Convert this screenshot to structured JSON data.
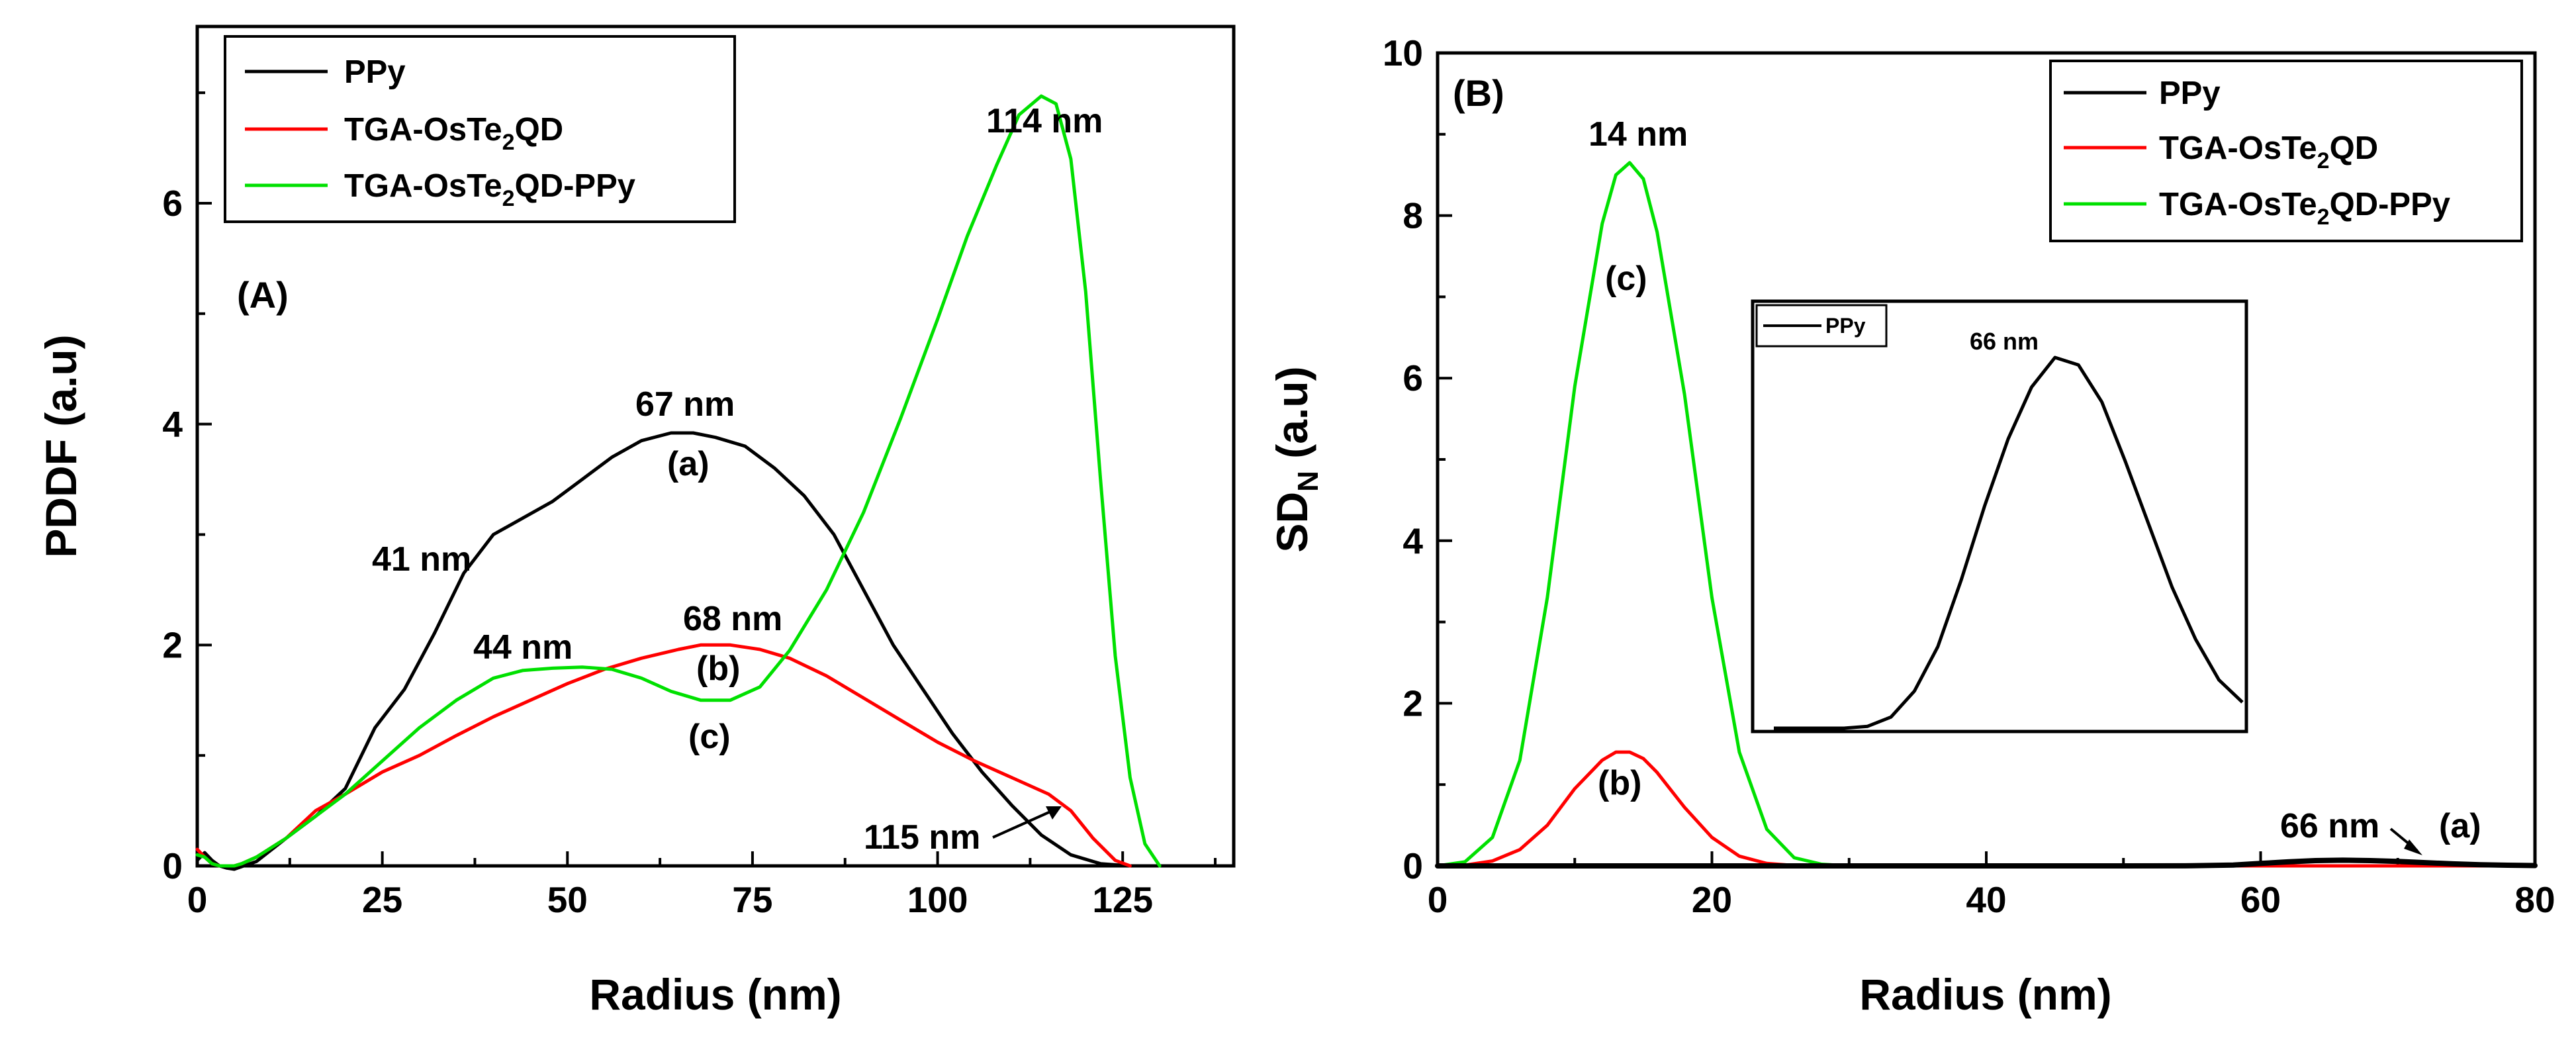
{
  "colors": {
    "ppy": "#000000",
    "tga": "#ff0000",
    "composite": "#00e000",
    "axis": "#000000"
  },
  "legend": {
    "ppy": "PPy",
    "tga": {
      "pre": "TGA-OsTe",
      "sub": "2",
      "post": "QD"
    },
    "composite": {
      "pre": "TGA-OsTe",
      "sub": "2",
      "post": "QD-PPy"
    }
  },
  "chart_data": [
    {
      "type": "line",
      "panel_label": "(A)",
      "xlabel": "Radius (nm)",
      "ylabel": "PDDF (a.u)",
      "xlim": [
        0,
        140
      ],
      "ylim": [
        0,
        7.6
      ],
      "xticks": [
        0,
        25,
        50,
        75,
        100,
        125
      ],
      "yticks": [
        0,
        2,
        4,
        6
      ],
      "series": [
        {
          "name": "PPy",
          "key": "ppy",
          "x": [
            0,
            1,
            2,
            3,
            4,
            5,
            8,
            12,
            16,
            20,
            24,
            28,
            32,
            36,
            40,
            44,
            48,
            52,
            56,
            60,
            64,
            67,
            70,
            74,
            78,
            82,
            86,
            90,
            94,
            98,
            102,
            106,
            110,
            114,
            118,
            122,
            126
          ],
          "y": [
            0.05,
            0.12,
            0.05,
            0.0,
            -0.02,
            -0.03,
            0.04,
            0.25,
            0.45,
            0.7,
            1.25,
            1.6,
            2.1,
            2.65,
            3.0,
            3.15,
            3.3,
            3.5,
            3.7,
            3.85,
            3.92,
            3.92,
            3.88,
            3.8,
            3.6,
            3.35,
            3.0,
            2.5,
            2.0,
            1.6,
            1.2,
            0.85,
            0.55,
            0.28,
            0.1,
            0.02,
            0.0
          ]
        },
        {
          "name": "TGA-OsTe2QD",
          "key": "tga",
          "x": [
            0,
            1,
            2,
            3,
            4,
            5,
            6,
            8,
            12,
            16,
            20,
            25,
            30,
            35,
            40,
            45,
            50,
            55,
            60,
            65,
            68,
            72,
            76,
            80,
            85,
            90,
            95,
            100,
            105,
            110,
            115,
            118,
            121,
            124,
            126
          ],
          "y": [
            0.15,
            0.08,
            0.02,
            0.0,
            0.0,
            0.0,
            0.02,
            0.08,
            0.25,
            0.5,
            0.65,
            0.85,
            1.0,
            1.18,
            1.35,
            1.5,
            1.65,
            1.78,
            1.88,
            1.96,
            2.0,
            2.0,
            1.96,
            1.88,
            1.72,
            1.52,
            1.32,
            1.12,
            0.95,
            0.8,
            0.65,
            0.5,
            0.25,
            0.05,
            0.0
          ]
        },
        {
          "name": "TGA-OsTe2QD-PPy",
          "key": "composite",
          "x": [
            0,
            1,
            2,
            3,
            4,
            5,
            6,
            8,
            12,
            16,
            20,
            25,
            30,
            35,
            40,
            44,
            48,
            52,
            56,
            60,
            64,
            68,
            72,
            76,
            80,
            85,
            90,
            95,
            100,
            104,
            108,
            111,
            114,
            116,
            118,
            120,
            122,
            124,
            126,
            128,
            130
          ],
          "y": [
            0.1,
            0.08,
            0.02,
            0.0,
            0.0,
            0.0,
            0.02,
            0.08,
            0.25,
            0.45,
            0.65,
            0.95,
            1.25,
            1.5,
            1.7,
            1.77,
            1.79,
            1.8,
            1.78,
            1.7,
            1.58,
            1.5,
            1.5,
            1.62,
            1.95,
            2.5,
            3.2,
            4.05,
            4.95,
            5.7,
            6.35,
            6.8,
            6.97,
            6.9,
            6.4,
            5.2,
            3.5,
            1.9,
            0.8,
            0.2,
            0.0
          ]
        }
      ],
      "annotations": [
        {
          "text": "114 nm"
        },
        {
          "text": "67 nm"
        },
        {
          "text": "(a)"
        },
        {
          "text": "41 nm"
        },
        {
          "text": "44 nm"
        },
        {
          "text": "68 nm"
        },
        {
          "text": "(b)"
        },
        {
          "text": "(c)"
        },
        {
          "text": "115 nm"
        }
      ]
    },
    {
      "type": "line",
      "panel_label": "(B)",
      "xlabel": "Radius (nm)",
      "ylabel": {
        "pre": "SD",
        "sub": "N",
        "post": " (a.u)"
      },
      "xlim": [
        0,
        80
      ],
      "ylim": [
        0,
        10
      ],
      "xticks": [
        0,
        20,
        40,
        60,
        80
      ],
      "yticks": [
        0,
        2,
        4,
        6,
        8,
        10
      ],
      "series": [
        {
          "name": "PPy",
          "key": "ppy",
          "x": [
            0,
            10,
            20,
            30,
            40,
            50,
            55,
            58,
            60,
            62,
            64,
            66,
            68,
            70,
            72,
            74,
            76,
            78,
            80
          ],
          "y": [
            0.0,
            0.0,
            0.0,
            0.0,
            0.0,
            0.0,
            0.002,
            0.01,
            0.03,
            0.05,
            0.065,
            0.07,
            0.065,
            0.055,
            0.04,
            0.025,
            0.015,
            0.008,
            0.004
          ]
        },
        {
          "name": "TGA-OsTe2QD",
          "key": "tga",
          "x": [
            0,
            2,
            4,
            6,
            8,
            10,
            12,
            13,
            14,
            15,
            16,
            18,
            20,
            22,
            24,
            26,
            28,
            30,
            40,
            50,
            60,
            70,
            80
          ],
          "y": [
            0.0,
            0.01,
            0.06,
            0.2,
            0.5,
            0.95,
            1.3,
            1.4,
            1.4,
            1.32,
            1.15,
            0.72,
            0.35,
            0.12,
            0.03,
            0.005,
            0.0,
            0.0,
            0.0,
            0.0,
            0.0,
            0.0,
            0.0
          ]
        },
        {
          "name": "TGA-OsTe2QD-PPy",
          "key": "composite",
          "x": [
            0,
            2,
            4,
            6,
            8,
            10,
            12,
            13,
            14,
            15,
            16,
            18,
            20,
            22,
            24,
            26,
            28,
            30,
            40,
            50,
            60,
            70,
            80
          ],
          "y": [
            0.0,
            0.05,
            0.35,
            1.3,
            3.3,
            5.9,
            7.9,
            8.5,
            8.65,
            8.45,
            7.8,
            5.8,
            3.3,
            1.4,
            0.45,
            0.1,
            0.02,
            0.0,
            0.0,
            0.0,
            0.0,
            0.0,
            0.0
          ]
        }
      ],
      "annotations": [
        {
          "text": "14 nm"
        },
        {
          "text": "(c)"
        },
        {
          "text": "(b)"
        },
        {
          "text": "66 nm"
        },
        {
          "text": "(a)"
        }
      ],
      "inset": {
        "legend": "PPy",
        "peak_label": "66 nm",
        "x": [
          0,
          0.05,
          0.1,
          0.15,
          0.2,
          0.25,
          0.3,
          0.35,
          0.4,
          0.45,
          0.5,
          0.55,
          0.6,
          0.65,
          0.7,
          0.75,
          0.8,
          0.85,
          0.9,
          0.95,
          1.0
        ],
        "y": [
          0.0,
          0.0,
          0.0,
          0.0,
          0.005,
          0.03,
          0.1,
          0.22,
          0.4,
          0.6,
          0.78,
          0.92,
          1.0,
          0.98,
          0.88,
          0.72,
          0.55,
          0.38,
          0.24,
          0.13,
          0.07
        ]
      }
    }
  ]
}
